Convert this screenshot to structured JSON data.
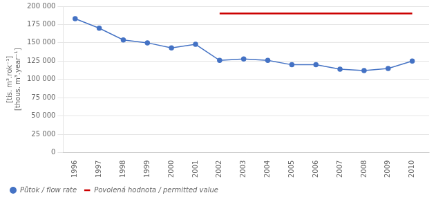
{
  "chart_data": {
    "type": "line",
    "x": [
      1996,
      1997,
      1998,
      1999,
      2000,
      2001,
      2002,
      2003,
      2004,
      2005,
      2006,
      2007,
      2008,
      2009,
      2010
    ],
    "series": [
      {
        "name": "Půtok / flow rate",
        "color": "#4472C4",
        "marker": "o",
        "values": [
          183000,
          170000,
          154000,
          150000,
          143000,
          148000,
          126000,
          128000,
          126000,
          120000,
          120000,
          114000,
          112000,
          115000,
          125000
        ]
      },
      {
        "name": "Povolená hodnota / permitted value",
        "color": "#CC0000",
        "values": [
          null,
          null,
          null,
          null,
          null,
          null,
          190000,
          190000,
          190000,
          190000,
          190000,
          190000,
          190000,
          190000,
          190000
        ]
      }
    ],
    "ylabel": "[tis. m³.rok⁻¹]\n[thous. m³.year⁻¹]",
    "xlim": [
      1995.5,
      2010.7
    ],
    "xticks": [
      1996,
      1997,
      1998,
      1999,
      2000,
      2001,
      2002,
      2003,
      2004,
      2005,
      2006,
      2007,
      2008,
      2009,
      2010
    ],
    "ylim": [
      0,
      200000
    ],
    "yticks": [
      0,
      {
        "value": 25000,
        "label": "25 000"
      },
      {
        "value": 50000,
        "label": "50 000"
      },
      {
        "value": 75000,
        "label": "75 000"
      },
      {
        "value": 100000,
        "label": "100 000"
      },
      {
        "value": 125000,
        "label": "125 000"
      },
      {
        "value": 150000,
        "label": "150 000"
      },
      {
        "value": 175000,
        "label": "175 000"
      },
      {
        "value": 200000,
        "label": "200 000"
      }
    ],
    "grid": "y",
    "legend": "lower left"
  }
}
